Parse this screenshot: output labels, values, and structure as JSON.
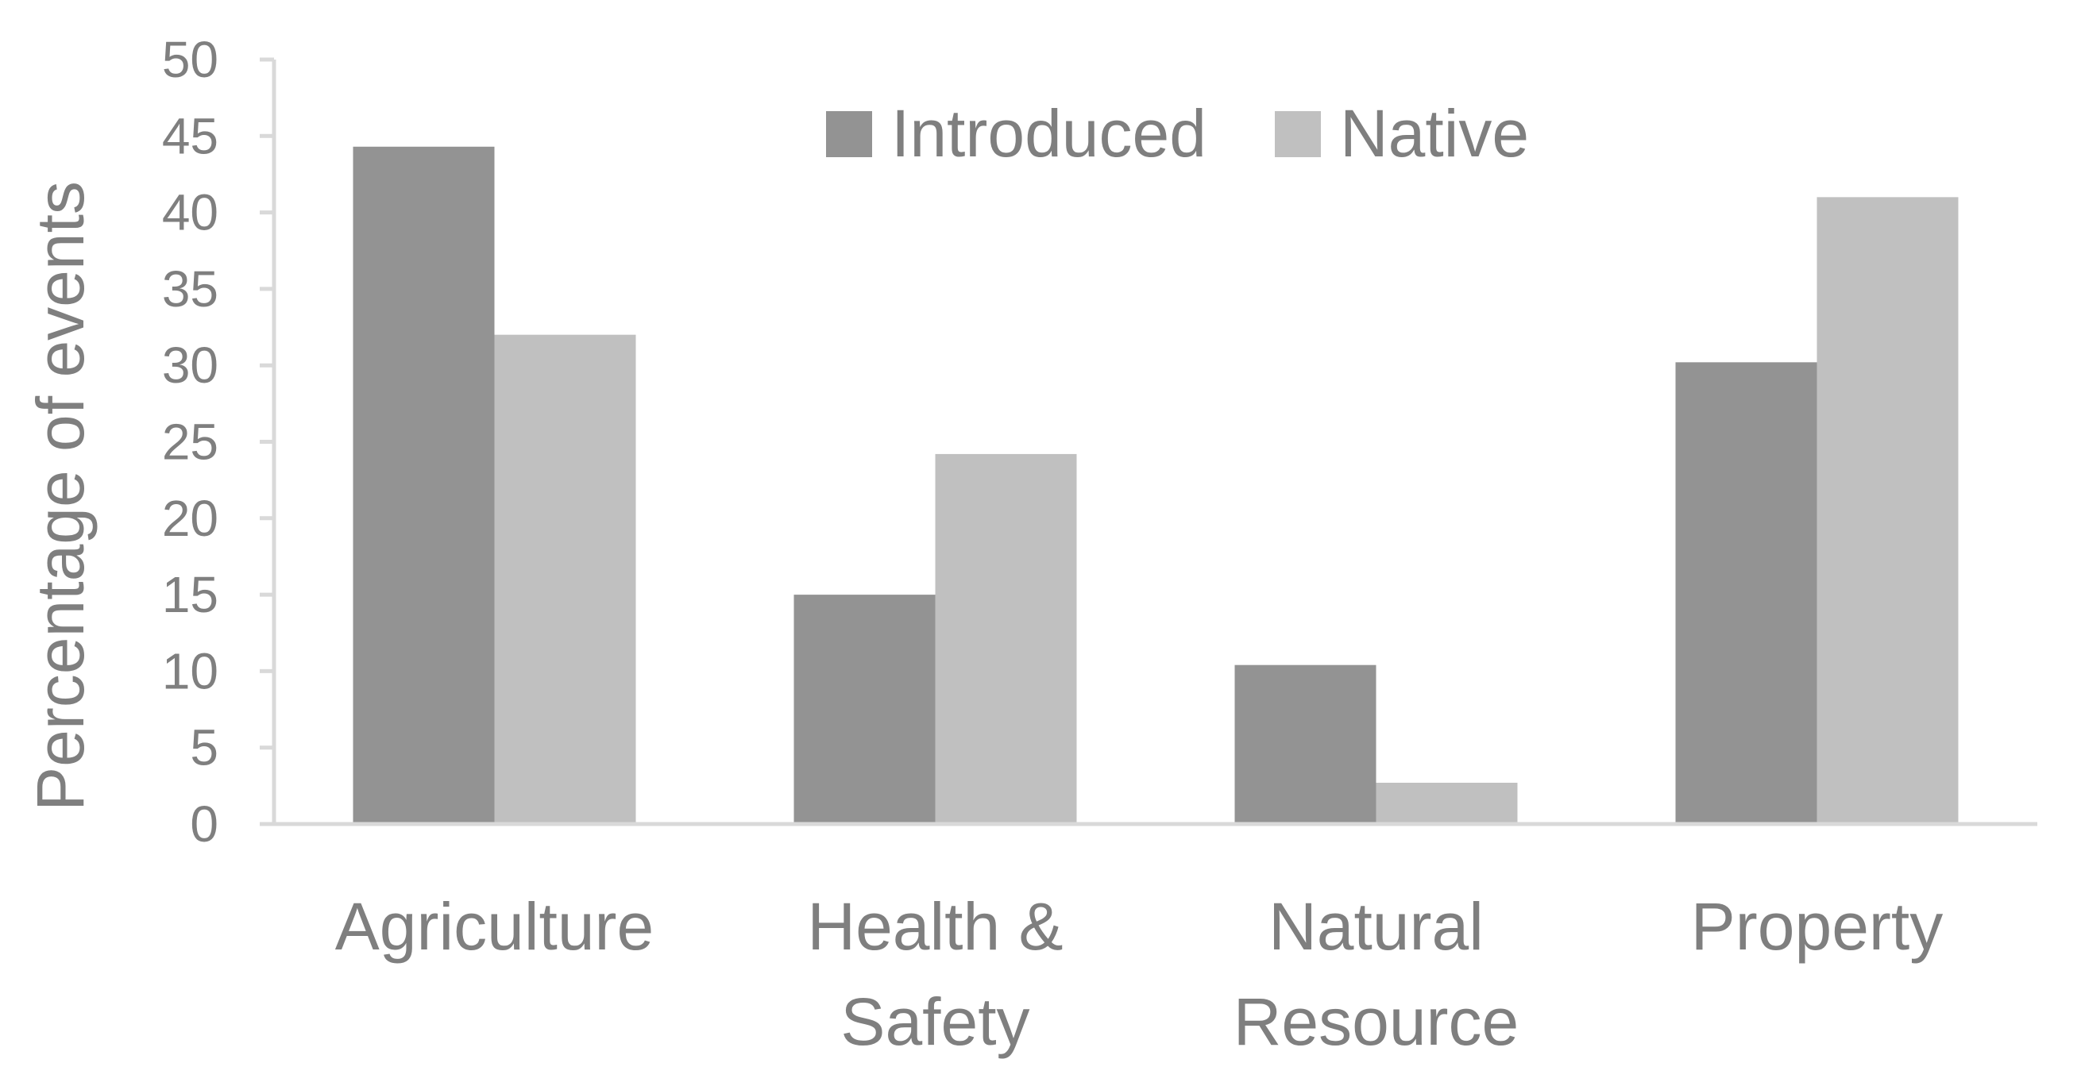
{
  "chart_data": {
    "type": "bar",
    "title": "",
    "xlabel": "",
    "ylabel": "Percentage of events",
    "ylim": [
      0,
      50
    ],
    "yticks": [
      0,
      5,
      10,
      15,
      20,
      25,
      30,
      35,
      40,
      45,
      50
    ],
    "grid": false,
    "legend_position": "top-center",
    "categories": [
      [
        "Agriculture"
      ],
      [
        "Health &",
        "Safety"
      ],
      [
        "Natural",
        "Resource"
      ],
      [
        "Property"
      ]
    ],
    "series": [
      {
        "name": "Introduced",
        "color": "#939393",
        "values": [
          44.3,
          15.0,
          10.4,
          30.2
        ]
      },
      {
        "name": "Native",
        "color": "#c0c0c0",
        "values": [
          32.0,
          24.2,
          2.7,
          41.0
        ]
      }
    ]
  }
}
